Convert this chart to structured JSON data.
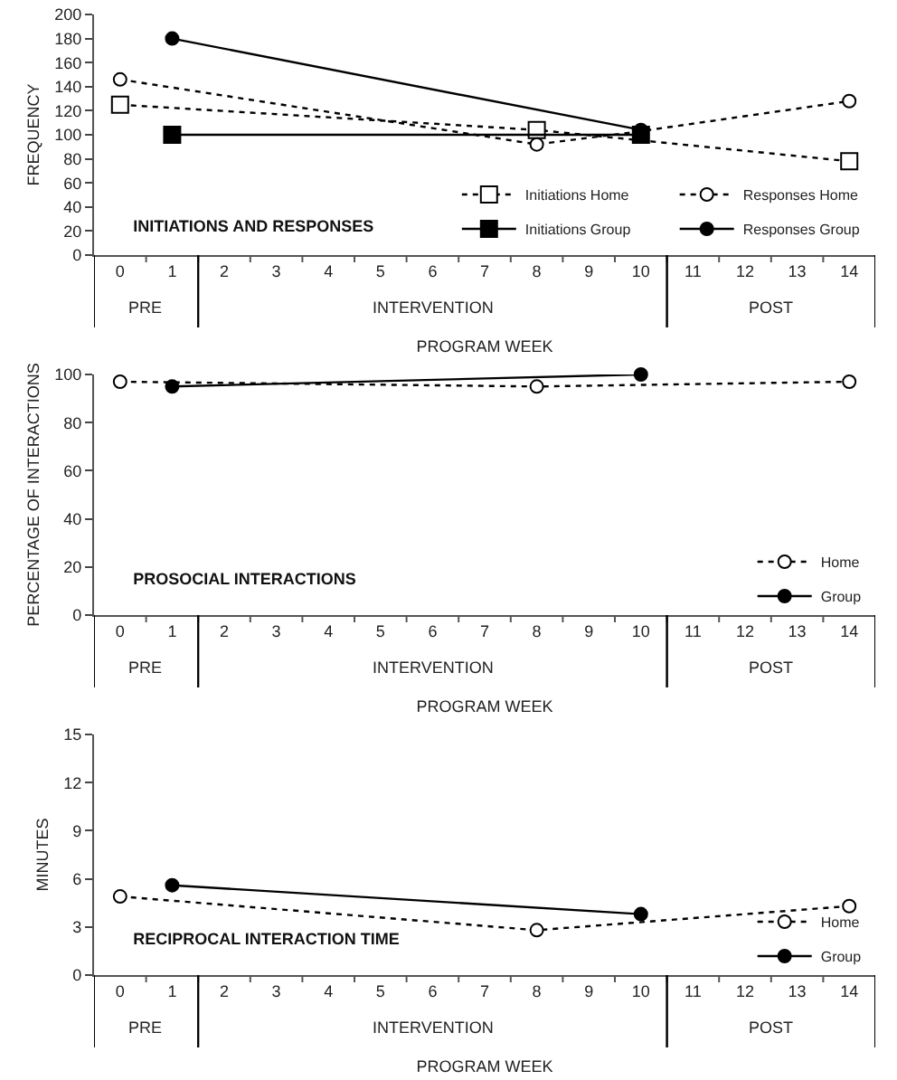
{
  "chart_data": [
    {
      "type": "line",
      "title": "INITIATIONS AND RESPONSES",
      "xlabel": "PROGRAM WEEK",
      "ylabel": "FREQUENCY",
      "series": [
        {
          "name": "Initiations Home",
          "color": "#000000",
          "marker": "square",
          "line_style": "dotted",
          "x": [
            0,
            8,
            14
          ],
          "values": [
            125,
            104,
            78
          ]
        },
        {
          "name": "Responses Home",
          "color": "#000000",
          "marker": "circle",
          "line_style": "dotted",
          "x": [
            0,
            8,
            10,
            14
          ],
          "values": [
            146,
            92,
            103,
            128
          ]
        },
        {
          "name": "Initiations Group",
          "color": "#000000",
          "marker": "square",
          "line_style": "solid",
          "x": [
            1,
            10
          ],
          "values": [
            100,
            100
          ]
        },
        {
          "name": "Responses Group",
          "color": "#000000",
          "marker": "circle",
          "line_style": "solid",
          "x": [
            1,
            10
          ],
          "values": [
            180,
            104
          ]
        }
      ],
      "xlim": [
        -0.5,
        14.5
      ],
      "xticks": [
        0,
        1,
        2,
        3,
        4,
        5,
        6,
        7,
        8,
        9,
        10,
        11,
        12,
        13,
        14
      ],
      "ylim": [
        0,
        200
      ],
      "yticks": [
        0,
        20,
        40,
        60,
        80,
        100,
        120,
        140,
        160,
        180,
        200
      ],
      "grid": false,
      "legend": "bottom right",
      "annotations": [
        "PRE",
        "INTERVENTION",
        "POST"
      ]
    },
    {
      "type": "line",
      "title": "PROSOCIAL INTERACTIONS",
      "xlabel": "PROGRAM WEEK",
      "ylabel": "PERCENTAGE OF INTERACTIONS",
      "series": [
        {
          "name": "Home",
          "color": "#000000",
          "marker": "circle",
          "line_style": "dotted",
          "x": [
            0,
            8,
            14
          ],
          "values": [
            97,
            95,
            97
          ]
        },
        {
          "name": "Group",
          "color": "#000000",
          "marker": "circle",
          "line_style": "solid",
          "x": [
            1,
            10
          ],
          "values": [
            95,
            100
          ]
        }
      ],
      "xlim": [
        -0.5,
        14.5
      ],
      "xticks": [
        0,
        1,
        2,
        3,
        4,
        5,
        6,
        7,
        8,
        9,
        10,
        11,
        12,
        13,
        14
      ],
      "ylim": [
        0,
        100
      ],
      "yticks": [
        0,
        20,
        40,
        60,
        80,
        100
      ],
      "grid": false,
      "legend": "bottom right",
      "annotations": [
        "PRE",
        "INTERVENTION",
        "POST"
      ]
    },
    {
      "type": "line",
      "title": "RECIPROCAL INTERACTION TIME",
      "xlabel": "PROGRAM WEEK",
      "ylabel": "MINUTES",
      "series": [
        {
          "name": "Home",
          "color": "#000000",
          "marker": "circle",
          "line_style": "dotted",
          "x": [
            0,
            8,
            14
          ],
          "values": [
            4.9,
            2.8,
            4.3
          ]
        },
        {
          "name": "Group",
          "color": "#000000",
          "marker": "circle",
          "line_style": "solid",
          "x": [
            1,
            10
          ],
          "values": [
            5.6,
            3.8
          ]
        }
      ],
      "xlim": [
        -0.5,
        14.5
      ],
      "xticks": [
        0,
        1,
        2,
        3,
        4,
        5,
        6,
        7,
        8,
        9,
        10,
        11,
        12,
        13,
        14
      ],
      "ylim": [
        0,
        15
      ],
      "yticks": [
        0,
        3,
        6,
        9,
        12,
        15
      ],
      "grid": false,
      "legend": "bottom right",
      "annotations": [
        "PRE",
        "INTERVENTION",
        "POST"
      ]
    }
  ]
}
